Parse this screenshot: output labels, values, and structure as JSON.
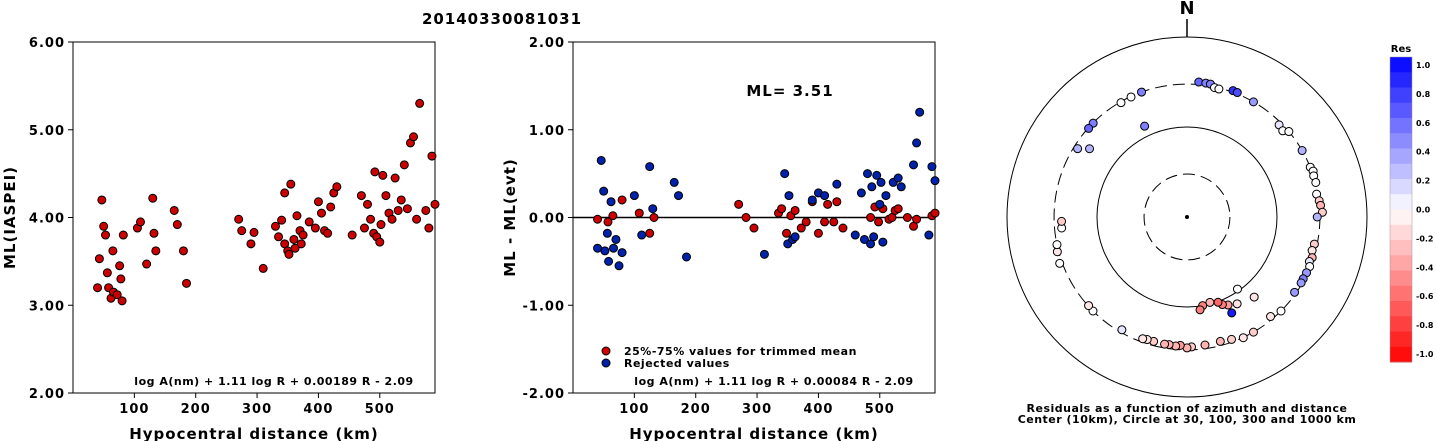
{
  "title": "20140330081031",
  "chart_data": [
    {
      "type": "scatter",
      "xlabel": "Hypocentral distance (km)",
      "ylabel": "ML(IASPEI)",
      "xlim": [
        0,
        590
      ],
      "ylim": [
        2.0,
        6.0
      ],
      "x_ticks": [
        "100",
        "200",
        "300",
        "400",
        "500"
      ],
      "y_ticks": [
        "2.00",
        "3.00",
        "4.00",
        "5.00",
        "6.00"
      ],
      "annotation": "log A(nm) + 1.11 log R + 0.00189 R - 2.09",
      "colors": {
        "point": "#cc0000"
      },
      "x": [
        40,
        43,
        47,
        50,
        53,
        56,
        58,
        62,
        65,
        66,
        72,
        76,
        78,
        80,
        82,
        105,
        110,
        120,
        130,
        132,
        135,
        165,
        170,
        180,
        185,
        270,
        275,
        290,
        295,
        310,
        330,
        335,
        340,
        345,
        345,
        350,
        352,
        355,
        360,
        362,
        365,
        370,
        372,
        375,
        385,
        395,
        400,
        405,
        410,
        415,
        420,
        425,
        430,
        455,
        470,
        475,
        480,
        485,
        490,
        492,
        495,
        500,
        502,
        505,
        510,
        515,
        520,
        525,
        530,
        535,
        540,
        545,
        550,
        555,
        560,
        565,
        575,
        580,
        585,
        590
      ],
      "y": [
        3.2,
        3.53,
        4.2,
        3.9,
        3.8,
        3.37,
        3.2,
        3.08,
        3.62,
        3.15,
        3.12,
        3.45,
        3.3,
        3.05,
        3.8,
        3.88,
        3.95,
        3.47,
        4.22,
        3.82,
        3.62,
        4.08,
        3.92,
        3.62,
        3.25,
        3.98,
        3.85,
        3.7,
        3.83,
        3.42,
        3.9,
        3.78,
        3.97,
        3.7,
        4.28,
        3.62,
        3.58,
        4.38,
        3.75,
        3.65,
        4.02,
        3.85,
        3.7,
        3.8,
        3.95,
        3.88,
        4.18,
        4.05,
        3.85,
        3.82,
        4.12,
        4.28,
        4.35,
        3.8,
        4.25,
        3.88,
        4.15,
        3.98,
        3.82,
        4.52,
        3.78,
        3.72,
        3.92,
        4.48,
        4.25,
        4.05,
        3.98,
        4.45,
        4.08,
        4.2,
        4.6,
        4.1,
        4.85,
        4.92,
        3.98,
        5.3,
        4.08,
        3.88,
        4.7,
        4.15
      ]
    },
    {
      "type": "scatter",
      "xlabel": "Hypocentral distance (km)",
      "ylabel": "ML - ML(evt)",
      "xlim": [
        0,
        590
      ],
      "ylim": [
        -2.0,
        2.0
      ],
      "x_ticks": [
        "100",
        "200",
        "300",
        "400",
        "500"
      ],
      "y_ticks": [
        "-2.00",
        "-1.00",
        "0.00",
        "1.00",
        "2.00"
      ],
      "reference_line": 0.0,
      "ml_label": "ML= 3.51",
      "legend": [
        "25%-75% values for trimmed mean",
        "Rejected values"
      ],
      "colors": {
        "trimmed": "#cc0000",
        "rejected": "#0022aa"
      },
      "annotation": "log A(nm) + 1.11 log R + 0.00084 R - 2.09",
      "trimmed": {
        "x": [
          40,
          57,
          65,
          80,
          108,
          125,
          132,
          270,
          282,
          295,
          335,
          340,
          348,
          355,
          362,
          372,
          380,
          390,
          400,
          410,
          415,
          425,
          430,
          440,
          485,
          492,
          498,
          505,
          515,
          520,
          525,
          530,
          545,
          555,
          560,
          585,
          590
        ],
        "y": [
          -0.02,
          -0.05,
          0.02,
          0.2,
          0.05,
          -0.18,
          0.0,
          0.15,
          0.0,
          -0.12,
          0.05,
          0.1,
          -0.18,
          0.02,
          0.08,
          -0.12,
          -0.05,
          0.18,
          -0.18,
          -0.05,
          0.15,
          -0.05,
          0.18,
          -0.12,
          0.0,
          0.12,
          -0.05,
          0.1,
          -0.02,
          0.0,
          0.08,
          0.1,
          0.0,
          -0.1,
          -0.02,
          0.02,
          0.05
        ]
      },
      "rejected": {
        "x": [
          40,
          46,
          50,
          52,
          56,
          58,
          62,
          66,
          70,
          75,
          80,
          100,
          112,
          125,
          130,
          165,
          172,
          185,
          312,
          345,
          350,
          352,
          358,
          362,
          390,
          400,
          410,
          430,
          460,
          470,
          475,
          480,
          485,
          487,
          490,
          495,
          500,
          502,
          505,
          510,
          522,
          530,
          535,
          555,
          560,
          565,
          580,
          585,
          590
        ],
        "y": [
          -0.35,
          0.65,
          0.3,
          -0.38,
          -0.18,
          -0.5,
          0.18,
          -0.35,
          -0.25,
          -0.55,
          -0.4,
          0.25,
          -0.2,
          0.58,
          0.1,
          0.4,
          0.25,
          -0.45,
          -0.42,
          0.5,
          -0.3,
          0.25,
          -0.25,
          -0.22,
          0.2,
          0.28,
          0.25,
          0.38,
          -0.2,
          0.28,
          -0.25,
          0.5,
          -0.3,
          0.35,
          -0.22,
          0.48,
          0.15,
          0.4,
          -0.28,
          0.25,
          0.4,
          0.45,
          0.35,
          0.6,
          0.85,
          1.2,
          -0.2,
          0.58,
          0.42
        ]
      }
    },
    {
      "type": "scatter",
      "subtype": "polar",
      "north_label": "N",
      "caption": [
        "Residuals as a function of azimuth and distance",
        "Center (10km), Circle at 30, 100, 300 and 1000 km"
      ],
      "colorbar": {
        "title": "Res",
        "labels": [
          "1.0",
          "0.8",
          "0.6",
          "0.4",
          "0.2",
          "0.0",
          "-0.2",
          "-0.4",
          "-0.6",
          "-0.8",
          "-1.0"
        ],
        "top_color": "#0000ff",
        "mid_color": "#ffffff",
        "bottom_color": "#ff0000"
      },
      "stations_az_dist_res": [
        [
          5,
          320,
          0.6
        ],
        [
          8,
          318,
          0.5
        ],
        [
          10,
          316,
          0.5
        ],
        [
          20,
          312,
          0.8
        ],
        [
          22,
          310,
          0.7
        ],
        [
          12,
          295,
          0.0
        ],
        [
          14,
          292,
          0.0
        ],
        [
          340,
          300,
          0.5
        ],
        [
          335,
          296,
          0.0
        ],
        [
          330,
          293,
          0.0
        ],
        [
          315,
          298,
          0.5
        ],
        [
          312,
          296,
          0.6
        ],
        [
          302,
          271,
          0.3
        ],
        [
          305,
          210,
          0.3
        ],
        [
          335,
          130,
          0.5
        ],
        [
          30,
          300,
          0.4
        ],
        [
          45,
          280,
          0.1
        ],
        [
          48,
          270,
          0.0
        ],
        [
          50,
          300,
          0.0
        ],
        [
          60,
          300,
          0.3
        ],
        [
          68,
          300,
          0.0
        ],
        [
          70,
          310,
          0.0
        ],
        [
          72,
          302,
          0.0
        ],
        [
          75,
          303,
          0.0
        ],
        [
          80,
          290,
          0.0
        ],
        [
          83,
          302,
          -0.2
        ],
        [
          85,
          309,
          -0.3
        ],
        [
          88,
          320,
          -0.2
        ],
        [
          90,
          280,
          0.3
        ],
        [
          102,
          280,
          -0.2
        ],
        [
          105,
          275,
          -0.1
        ],
        [
          108,
          290,
          -0.3
        ],
        [
          110,
          280,
          0.1
        ],
        [
          112,
          295,
          0.0
        ],
        [
          115,
          292,
          0.4
        ],
        [
          118,
          290,
          0.5
        ],
        [
          120,
          291,
          0.4
        ],
        [
          125,
          288,
          0.4
        ],
        [
          135,
          300,
          0.0
        ],
        [
          140,
          278,
          -0.1
        ],
        [
          150,
          300,
          -0.2
        ],
        [
          155,
          302,
          -0.1
        ],
        [
          160,
          280,
          -0.2
        ],
        [
          165,
          270,
          -0.3
        ],
        [
          172,
          273,
          -0.3
        ],
        [
          178,
          278,
          -0.2
        ],
        [
          180,
          285,
          -0.3
        ],
        [
          183,
          268,
          -0.4
        ],
        [
          185,
          275,
          -0.3
        ],
        [
          188,
          270,
          -0.3
        ],
        [
          190,
          272,
          -0.3
        ],
        [
          195,
          270,
          -0.2
        ],
        [
          198,
          270,
          -0.1
        ],
        [
          200,
          275,
          -0.1
        ],
        [
          210,
          280,
          0.1
        ],
        [
          225,
          300,
          0.0
        ],
        [
          228,
          296,
          -0.1
        ],
        [
          250,
          320,
          0.0
        ],
        [
          255,
          310,
          -0.1
        ],
        [
          258,
          300,
          0.0
        ],
        [
          265,
          250,
          0.0
        ],
        [
          268,
          248,
          -0.2
        ],
        [
          150,
          130,
          -0.1
        ],
        [
          155,
          120,
          -0.4
        ],
        [
          158,
          112,
          -0.5
        ],
        [
          160,
          102,
          -0.6
        ],
        [
          165,
          96,
          -0.3
        ],
        [
          170,
          100,
          -0.5
        ],
        [
          172,
          110,
          -0.5
        ],
        [
          145,
          95,
          0.0
        ],
        [
          140,
          145,
          -0.1
        ],
        [
          155,
          150,
          0.9
        ]
      ]
    }
  ]
}
